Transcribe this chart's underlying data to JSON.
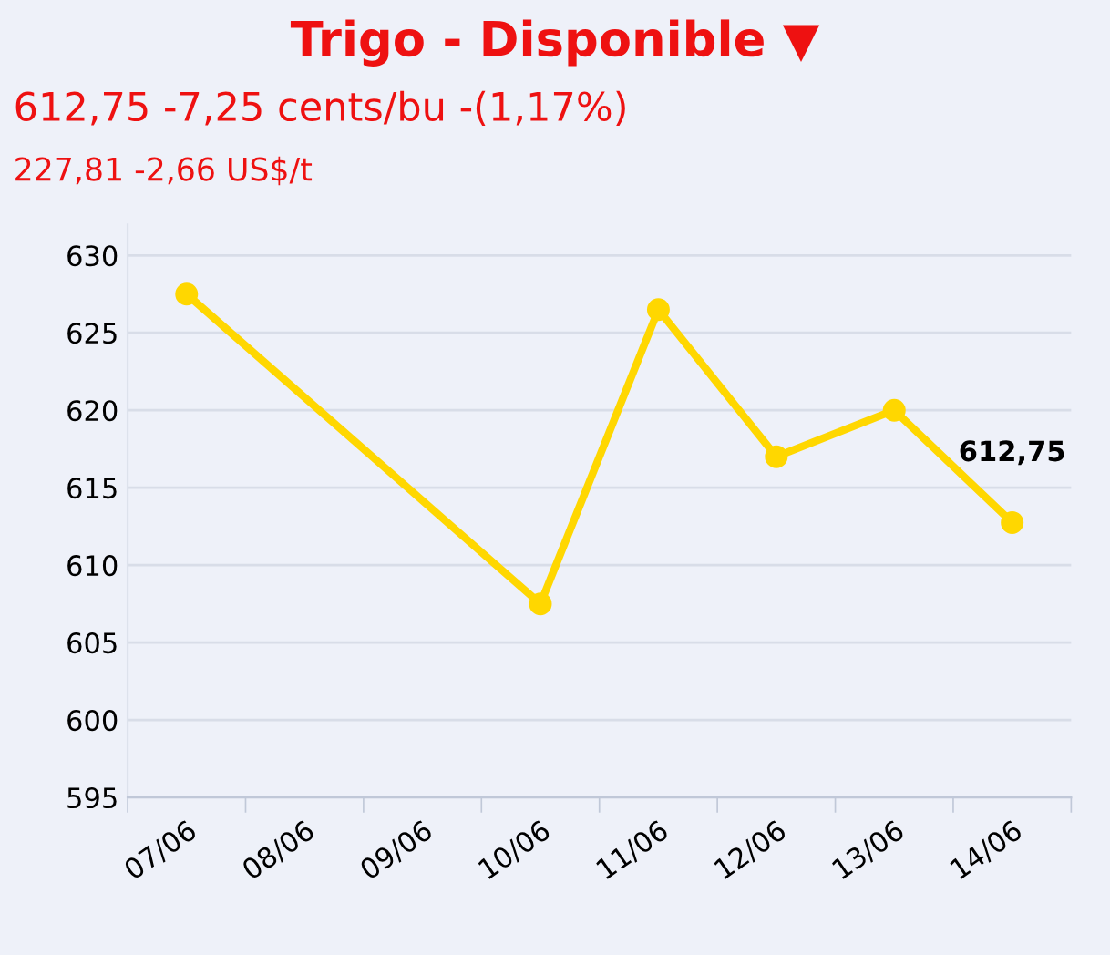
{
  "chart_data": {
    "type": "line",
    "title": "Trigo - Disponible ▼",
    "subtitle": "612,75 -7,25 cents/bu -(1,17%)",
    "annotations": [
      "227,81 -2,66 US$/t"
    ],
    "categories": [
      "07/06",
      "08/06",
      "09/06",
      "10/06",
      "11/06",
      "12/06",
      "13/06",
      "14/06"
    ],
    "series": [
      {
        "color": "#ffd700",
        "values": [
          627.5,
          null,
          null,
          607.5,
          626.5,
          617,
          620,
          612.75
        ],
        "value_labels": [
          null,
          null,
          null,
          null,
          null,
          null,
          null,
          "612,75"
        ]
      }
    ],
    "ylim": [
      595,
      632
    ],
    "yticks": [
      595,
      600,
      605,
      610,
      615,
      620,
      625,
      630
    ],
    "grid": "y",
    "marker": "circle",
    "line_style": "solid"
  }
}
